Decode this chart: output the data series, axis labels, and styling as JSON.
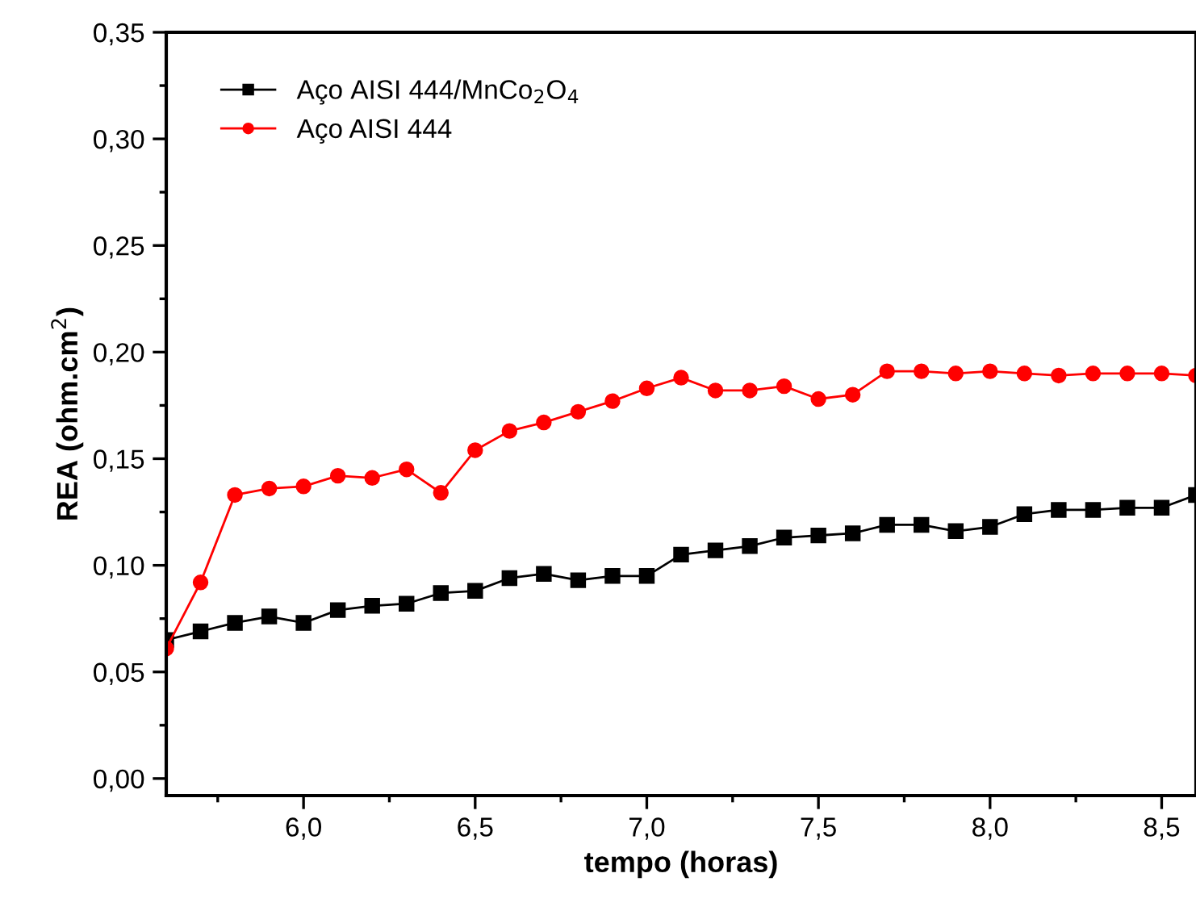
{
  "chart_data": {
    "type": "line",
    "xlabel": "tempo (horas)",
    "ylabel": "REA (ohm.cm$^{2}$)",
    "x": [
      5.6,
      5.7,
      5.8,
      5.9,
      6.0,
      6.1,
      6.2,
      6.3,
      6.4,
      6.5,
      6.6,
      6.7,
      6.8,
      6.9,
      7.0,
      7.1,
      7.2,
      7.3,
      7.4,
      7.5,
      7.6,
      7.7,
      7.8,
      7.9,
      8.0,
      8.1,
      8.2,
      8.3,
      8.4,
      8.5,
      8.6
    ],
    "series": [
      {
        "name": "Aço AISI 444/MnCo$_{2}$O$_{4}$",
        "color": "#000000",
        "marker": "square",
        "values": [
          0.065,
          0.069,
          0.073,
          0.076,
          0.073,
          0.079,
          0.081,
          0.082,
          0.087,
          0.088,
          0.094,
          0.096,
          0.093,
          0.095,
          0.095,
          0.105,
          0.107,
          0.109,
          0.113,
          0.114,
          0.115,
          0.119,
          0.119,
          0.116,
          0.118,
          0.124,
          0.126,
          0.126,
          0.127,
          0.127,
          0.133
        ]
      },
      {
        "name": "Aço AISI 444",
        "color": "#ff0000",
        "marker": "circle",
        "values": [
          0.061,
          0.092,
          0.133,
          0.136,
          0.137,
          0.142,
          0.141,
          0.145,
          0.134,
          0.154,
          0.163,
          0.167,
          0.172,
          0.177,
          0.183,
          0.188,
          0.182,
          0.182,
          0.184,
          0.178,
          0.18,
          0.191,
          0.191,
          0.19,
          0.191,
          0.19,
          0.189,
          0.19,
          0.19,
          0.19,
          0.189
        ]
      }
    ],
    "xlim": [
      5.6,
      8.6
    ],
    "ylim": [
      -0.008,
      0.35
    ],
    "xticks": [
      {
        "value": 6.0,
        "label": "6,0"
      },
      {
        "value": 6.5,
        "label": "6,5"
      },
      {
        "value": 7.0,
        "label": "7,0"
      },
      {
        "value": 7.5,
        "label": "7,5"
      },
      {
        "value": 8.0,
        "label": "8,0"
      },
      {
        "value": 8.5,
        "label": "8,5"
      }
    ],
    "yticks": [
      {
        "value": 0.0,
        "label": "0,00"
      },
      {
        "value": 0.05,
        "label": "0,05"
      },
      {
        "value": 0.1,
        "label": "0,10"
      },
      {
        "value": 0.15,
        "label": "0,15"
      },
      {
        "value": 0.2,
        "label": "0,20"
      },
      {
        "value": 0.25,
        "label": "0,25"
      },
      {
        "value": 0.3,
        "label": "0,30"
      },
      {
        "value": 0.35,
        "label": "0,35"
      }
    ],
    "legend": "top left",
    "grid": false,
    "line_style": "solid"
  }
}
